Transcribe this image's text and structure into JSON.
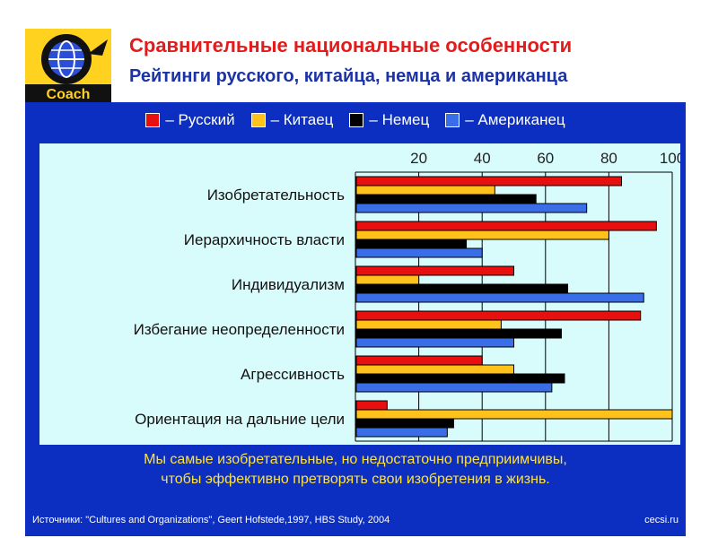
{
  "header": {
    "logo_text": "Coach",
    "title": "Сравнительные национальные особенности",
    "subtitle": "Рейтинги русского, китайца, немца и американца"
  },
  "legend": [
    {
      "label": "– Русский",
      "color": "#e80f0f"
    },
    {
      "label": "– Китаец",
      "color": "#ffc21a"
    },
    {
      "label": "– Немец",
      "color": "#000000"
    },
    {
      "label": "– Американец",
      "color": "#3a6ee8"
    }
  ],
  "chart_data": {
    "type": "bar",
    "orientation": "horizontal",
    "xlim": [
      0,
      100
    ],
    "xticks": [
      20,
      40,
      60,
      80,
      100
    ],
    "categories": [
      "Изобретательность",
      "Иерархичность власти",
      "Индивидуализм",
      "Избегание неопределенности",
      "Агрессивность",
      "Ориентация на дальние цели"
    ],
    "series": [
      {
        "name": "Русский",
        "color": "#e80f0f",
        "values": [
          84,
          95,
          50,
          90,
          40,
          10
        ]
      },
      {
        "name": "Китаец",
        "color": "#ffc21a",
        "values": [
          44,
          80,
          20,
          46,
          50,
          100
        ]
      },
      {
        "name": "Немец",
        "color": "#000000",
        "values": [
          57,
          35,
          67,
          65,
          66,
          31
        ]
      },
      {
        "name": "Американец",
        "color": "#3a6ee8",
        "values": [
          73,
          40,
          91,
          50,
          62,
          29
        ]
      }
    ],
    "grid": true
  },
  "footer": {
    "line1": "Мы самые изобретательные, но недостаточно предприимчивы,",
    "line2": "чтобы эффективно претворять свои изобретения в жизнь.",
    "sources": "Источники: \"Cultures and Organizations\", Geert Hofstede,1997, HBS Study, 2004",
    "site": "cecsi.ru"
  }
}
